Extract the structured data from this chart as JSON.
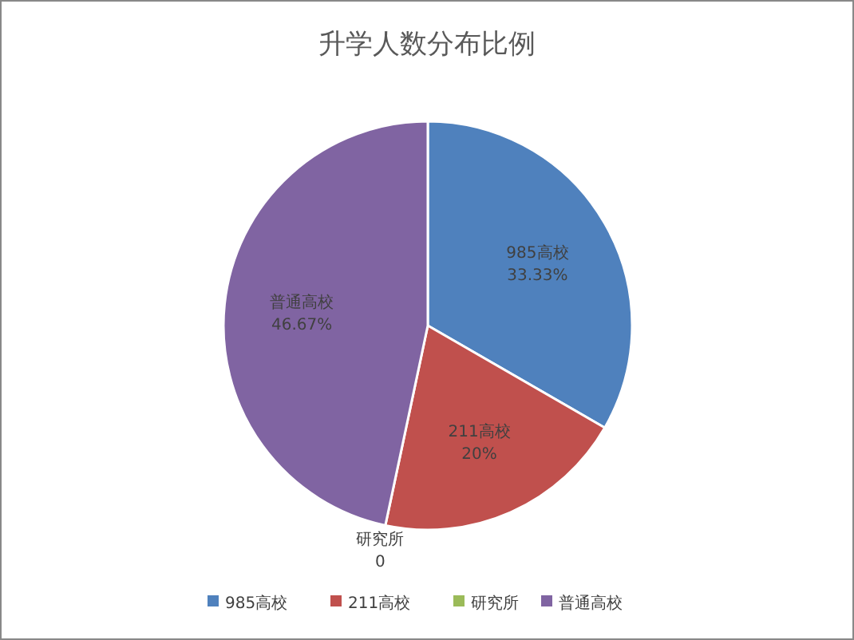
{
  "chart_data": {
    "type": "pie",
    "title": "升学人数分布比例",
    "categories": [
      "985高校",
      "211高校",
      "研究所",
      "普通高校"
    ],
    "values": [
      33.33,
      20,
      0,
      46.67
    ],
    "colors": [
      "#4f81bd",
      "#c0504d",
      "#9bbb59",
      "#8064a2"
    ],
    "value_labels": [
      "33.33%",
      "20%",
      "0",
      "46.67%"
    ],
    "legend": "bottom"
  }
}
